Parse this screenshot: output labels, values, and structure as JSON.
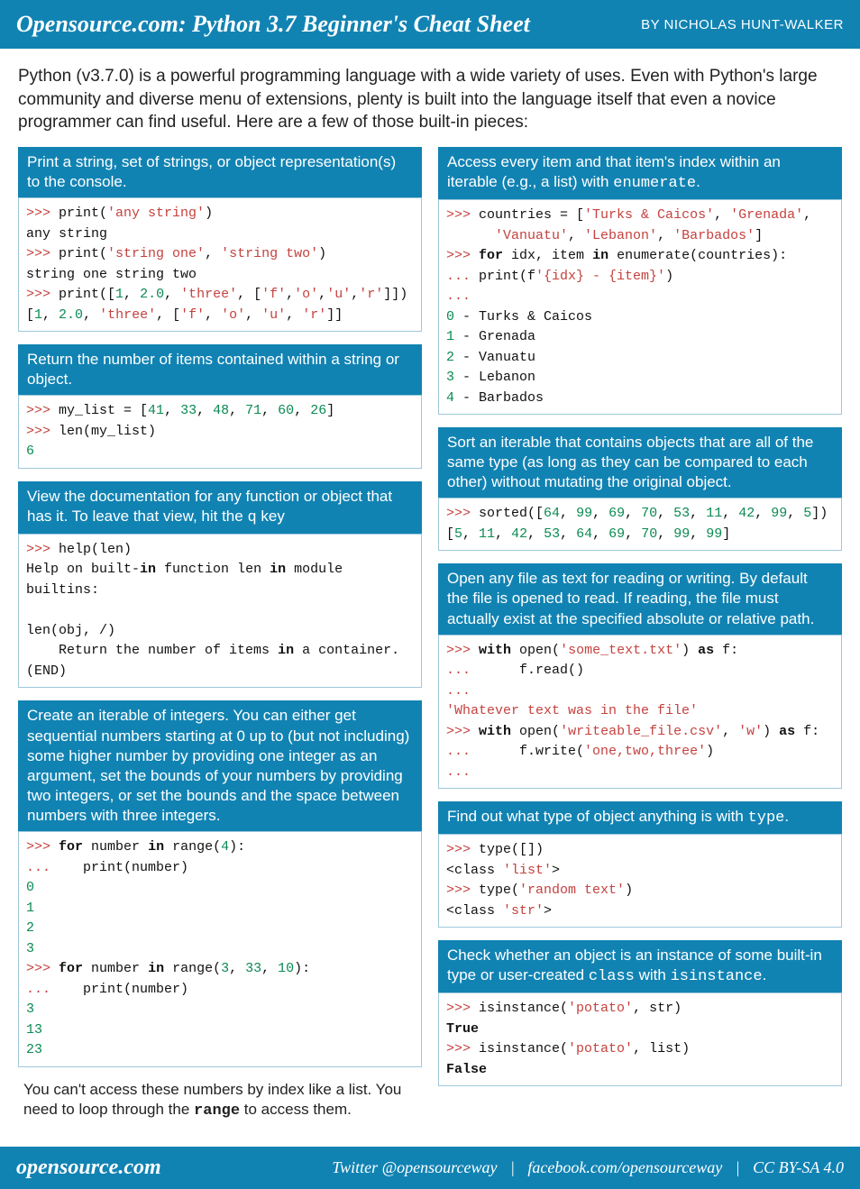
{
  "header": {
    "title": "Opensource.com: Python 3.7 Beginner's Cheat Sheet",
    "author": "BY NICHOLAS HUNT-WALKER"
  },
  "intro": "Python (v3.7.0) is a powerful programming language with a wide variety of uses. Even with Python's large community and diverse menu of extensions, plenty is built into the language itself that even a novice programmer can find useful. Here are a few of those built-in pieces:",
  "colors": {
    "accent": "#1183b3",
    "border": "#9ec8dc",
    "code_red": "#c4423f",
    "code_green": "#0a8a52",
    "text": "#222222"
  },
  "left": {
    "print": {
      "head": "Print a string, set of strings, or object representation(s) to the console.",
      "code": ">>> print('any string')\nany string\n>>> print('string one', 'string two')\nstring one string two\n>>> print([1, 2.0, 'three', ['f','o','u','r']])\n[1, 2.0, 'three', ['f', 'o', 'u', 'r']]"
    },
    "len": {
      "head": "Return the number of items contained within a string or object.",
      "code": ">>> my_list = [41, 33, 48, 71, 60, 26]\n>>> len(my_list)\n6"
    },
    "help": {
      "head_pre": "View the documentation for any function or object that has it. To leave that view, hit the ",
      "head_key": "q",
      "head_post": " key",
      "code": ">>> help(len)\nHelp on built-in function len in module builtins:\n\nlen(obj, /)\n    Return the number of items in a container.\n(END)"
    },
    "range": {
      "head": "Create an iterable of integers. You can either get sequential numbers starting at 0 up to (but not including) some higher number by providing one integer as an argument, set the bounds of your numbers by providing two integers, or set the bounds and the space between numbers with three integers.",
      "code": ">>> for number in range(4):\n...    print(number)\n0\n1\n2\n3\n>>> for number in range(3, 33, 10):\n...    print(number)\n3\n13\n23",
      "note_pre": "You can't access these numbers by index like a list. You need to loop through the ",
      "note_kw": "range",
      "note_post": " to access them."
    }
  },
  "right": {
    "enumerate": {
      "head_pre": "Access every item and that item's index within an iterable (e.g., a list) with ",
      "head_kw": "enumerate",
      "head_post": ".",
      "code": ">>> countries = ['Turks & Caicos', 'Grenada',\n      'Vanuatu', 'Lebanon', 'Barbados']\n>>> for idx, item in enumerate(countries):\n... print(f'{idx} - {item}')\n...\n0 - Turks & Caicos\n1 - Grenada\n2 - Vanuatu\n3 - Lebanon\n4 - Barbados"
    },
    "sorted": {
      "head": "Sort an iterable that contains objects that are all of the same type (as long as they can be compared to each other) without mutating the original object.",
      "code": ">>> sorted([64, 99, 69, 70, 53, 11, 42, 99, 5])\n[5, 11, 42, 53, 64, 69, 70, 99, 99]"
    },
    "open": {
      "head": "Open any file as text for reading or writing. By default the file is opened to read. If reading, the file must actually exist at the specified absolute or relative path.",
      "code": ">>> with open('some_text.txt') as f:\n...      f.read()\n...\n'Whatever text was in the file'\n>>> with open('writeable_file.csv', 'w') as f:\n...      f.write('one,two,three')\n..."
    },
    "type": {
      "head_pre": "Find out what type of object anything is with ",
      "head_kw": "type",
      "head_post": ".",
      "code": ">>> type([])\n<class 'list'>\n>>> type('random text')\n<class 'str'>"
    },
    "isinstance": {
      "head_pre": "Check whether an object is an instance of some built-in type or user-created ",
      "head_kw1": "class",
      "head_mid": " with ",
      "head_kw2": "isinstance",
      "head_post": ".",
      "code": ">>> isinstance('potato', str)\nTrue\n>>> isinstance('potato', list)\nFalse"
    }
  },
  "footer": {
    "site": "opensource.com",
    "twitter": "Twitter @opensourceway",
    "facebook": "facebook.com/opensourceway",
    "license": "CC BY-SA 4.0"
  }
}
